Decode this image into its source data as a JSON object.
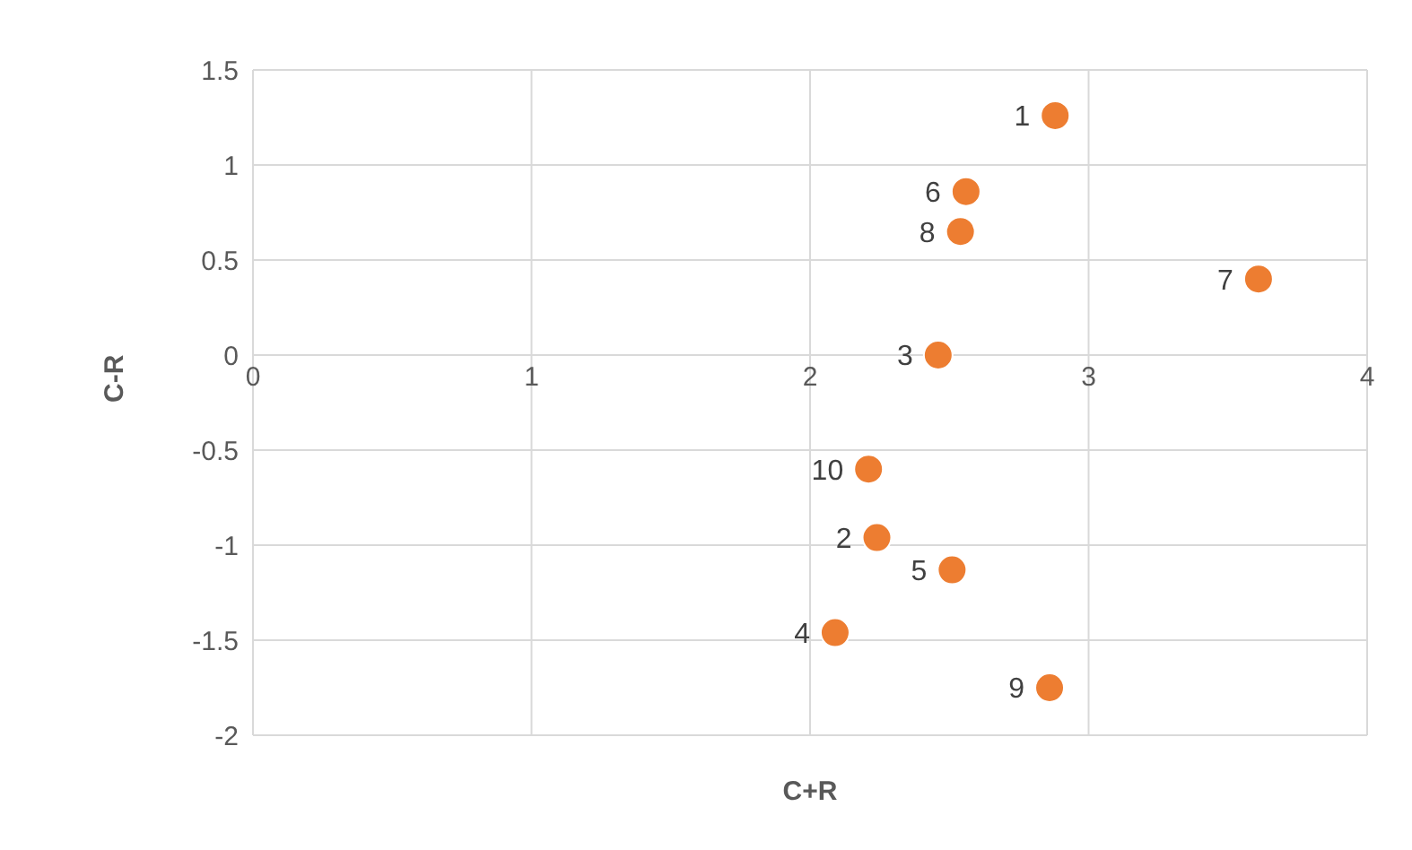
{
  "chart_data": {
    "type": "scatter",
    "xlabel": "C+R",
    "ylabel": "C-R",
    "x": [
      2.88,
      2.24,
      2.46,
      2.09,
      2.51,
      2.56,
      3.61,
      2.54,
      2.86,
      2.21
    ],
    "series": [
      {
        "color": "#ed7d31",
        "values": [
          1.26,
          -0.96,
          0,
          -1.46,
          -1.13,
          0.86,
          0.4,
          0.65,
          -1.75,
          -0.6
        ]
      }
    ],
    "annotations": [
      {
        "text": "1",
        "x": 2.88,
        "y": 1.26
      },
      {
        "text": "2",
        "x": 2.24,
        "y": -0.96
      },
      {
        "text": "3",
        "x": 2.46,
        "y": 0
      },
      {
        "text": "4",
        "x": 2.09,
        "y": -1.46
      },
      {
        "text": "5",
        "x": 2.51,
        "y": -1.13
      },
      {
        "text": "6",
        "x": 2.56,
        "y": 0.86
      },
      {
        "text": "7",
        "x": 3.61,
        "y": 0.4
      },
      {
        "text": "8",
        "x": 2.54,
        "y": 0.65
      },
      {
        "text": "9",
        "x": 2.86,
        "y": -1.75
      },
      {
        "text": "10",
        "x": 2.21,
        "y": -0.6
      }
    ],
    "xlim": [
      0,
      4
    ],
    "xticks": [
      0,
      1,
      2,
      3,
      4
    ],
    "ylim": [
      -2,
      1.5
    ],
    "yticks": [
      -2,
      -1.5,
      -1,
      -0.5,
      0,
      0.5,
      1,
      1.5
    ],
    "grid": true,
    "marker": "circle"
  }
}
